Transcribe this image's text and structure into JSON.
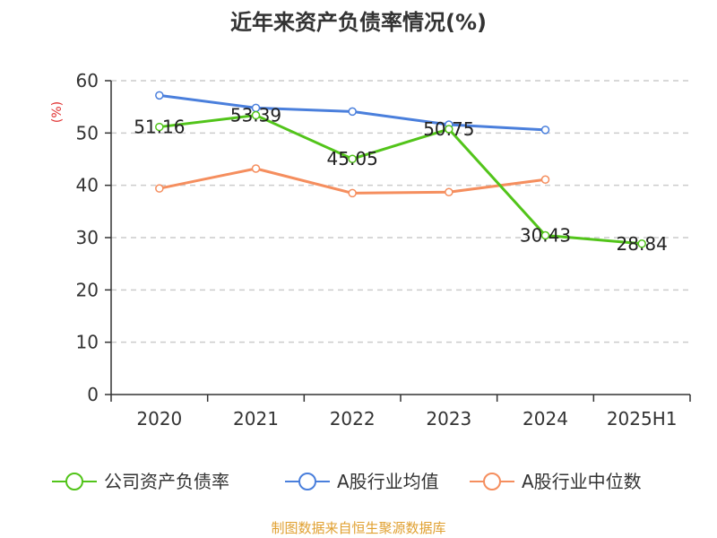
{
  "chart_data": {
    "type": "line",
    "title": "近年来资产负债率情况(%)",
    "ylabel": "(%)",
    "xlabel": "",
    "categories": [
      "2020",
      "2021",
      "2022",
      "2023",
      "2024",
      "2025H1"
    ],
    "ylim": [
      0,
      60
    ],
    "yticks": [
      0,
      10,
      20,
      30,
      40,
      50,
      60
    ],
    "grid": true,
    "legend_position": "bottom",
    "series": [
      {
        "name": "公司资产负债率",
        "color": "#52c41a",
        "values": [
          51.16,
          53.39,
          45.05,
          50.75,
          30.43,
          28.84
        ],
        "labels": [
          "51.16",
          "53.39",
          "45.05",
          "50.75",
          "30.43",
          "28.84"
        ]
      },
      {
        "name": "A股行业均值",
        "color": "#4a7fdc",
        "values": [
          57.2,
          54.8,
          54.1,
          51.6,
          50.6,
          null
        ],
        "labels": null
      },
      {
        "name": "A股行业中位数",
        "color": "#f58e5e",
        "values": [
          39.4,
          43.2,
          38.5,
          38.7,
          41.1,
          null
        ],
        "labels": null
      }
    ]
  },
  "footer": {
    "source": "制图数据来自恒生聚源数据库",
    "source_color": "#e0a030"
  },
  "unit_color": "#e03030"
}
